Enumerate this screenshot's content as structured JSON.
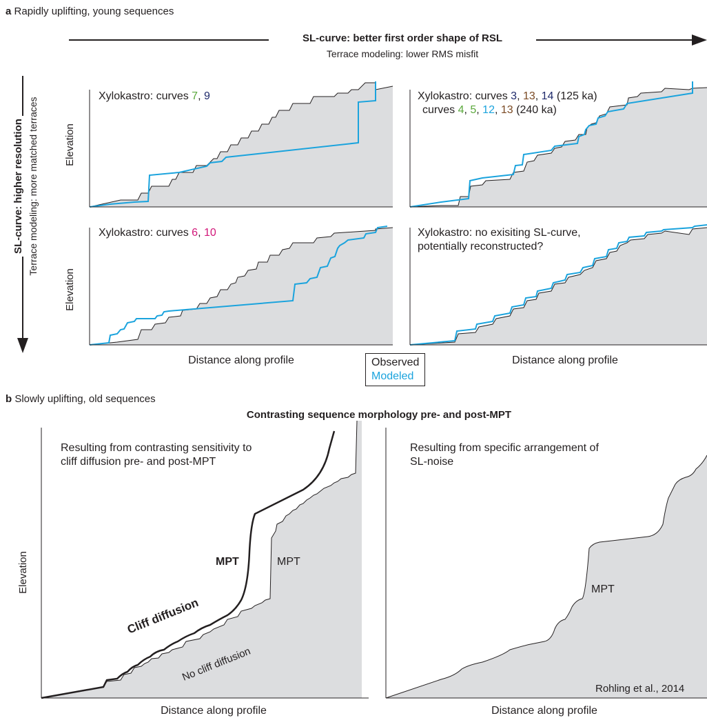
{
  "panel_a": {
    "letter": "a",
    "title": "Rapidly uplifting, young sequences",
    "h_arrow_title": "SL-curve: better first order shape of RSL",
    "h_arrow_subtitle": "Terrace modeling: lower RMS misfit",
    "v_arrow_title": "SL-curve: higher resolution",
    "v_arrow_subtitle": "Terrace modeling: more matched terraces",
    "ylabel": "Elevation",
    "xlabel": "Distance along profile",
    "legend": {
      "observed": "Observed",
      "modeled": "Modeled"
    },
    "plots": {
      "tl": {
        "prefix": "Xylokastro: curves",
        "nums": [
          {
            "text": "7",
            "color": "#5aa83b"
          },
          {
            "text": "9",
            "color": "#1f2a6b"
          }
        ]
      },
      "tr": {
        "line1_prefix": "Xylokastro: curves",
        "line1_nums": [
          {
            "text": "3",
            "color": "#1f2a6b"
          },
          {
            "text": "13",
            "color": "#7b4a24"
          },
          {
            "text": "14",
            "color": "#1f2a6b"
          }
        ],
        "line1_suffix": "(125 ka)",
        "line2_prefix": "curves",
        "line2_nums": [
          {
            "text": "4",
            "color": "#5aa83b"
          },
          {
            "text": "5",
            "color": "#5aa83b"
          },
          {
            "text": "12",
            "color": "#1aa3dd"
          },
          {
            "text": "13",
            "color": "#7b4a24"
          }
        ],
        "line2_suffix": "(240 ka)"
      },
      "bl": {
        "prefix": "Xylokastro: curves",
        "nums": [
          {
            "text": "6",
            "color": "#d2187a"
          },
          {
            "text": "10",
            "color": "#d2187a"
          }
        ]
      },
      "br": {
        "line1": "Xylokastro: no exisiting SL-curve,",
        "line2": "potentially reconstructed?"
      }
    }
  },
  "panel_b": {
    "letter": "b",
    "title": "Slowly uplifting, old sequences",
    "header": "Contrasting sequence morphology pre- and post-MPT",
    "ylabel": "Elevation",
    "left": {
      "text_line1": "Resulting from contrasting sensitivity to",
      "text_line2": "cliff diffusion pre- and post-MPT",
      "mpt_bold": "MPT",
      "mpt_plain": "MPT",
      "cliff_diffusion": "Cliff diffusion",
      "no_cliff_diffusion": "No cliff diffusion",
      "xlabel": "Distance along profile"
    },
    "right": {
      "text_line1": "Resulting from specific arrangement of",
      "text_line2": "SL-noise",
      "mpt": "MPT",
      "citation": "Rohling et al., 2014",
      "xlabel": "Distance along profile"
    }
  },
  "colors": {
    "observed_line": "#231f20",
    "modeled_line": "#1aa3dd",
    "fill": "#dcdddf"
  }
}
